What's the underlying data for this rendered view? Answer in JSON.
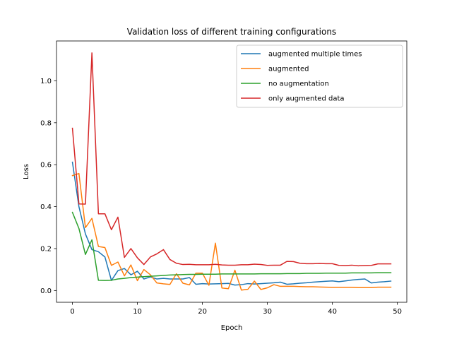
{
  "chart_data": {
    "type": "line",
    "title": "Validation loss of different training configurations",
    "xlabel": "Epoch",
    "ylabel": "Loss",
    "xlim": [
      -2.45,
      51.45
    ],
    "ylim": [
      -0.056,
      1.19
    ],
    "x_ticks": [
      0,
      10,
      20,
      30,
      40,
      50
    ],
    "y_ticks": [
      0.0,
      0.2,
      0.4,
      0.6,
      0.8,
      1.0
    ],
    "x_tick_labels": [
      "0",
      "10",
      "20",
      "30",
      "40",
      "50"
    ],
    "y_tick_labels": [
      "0.0",
      "0.2",
      "0.4",
      "0.6",
      "0.8",
      "1.0"
    ],
    "grid": false,
    "legend_position": "upper right",
    "x": [
      0,
      1,
      2,
      3,
      4,
      5,
      6,
      7,
      8,
      9,
      10,
      11,
      12,
      13,
      14,
      15,
      16,
      17,
      18,
      19,
      20,
      21,
      22,
      23,
      24,
      25,
      26,
      27,
      28,
      29,
      30,
      31,
      32,
      33,
      34,
      35,
      36,
      37,
      38,
      39,
      40,
      41,
      42,
      43,
      44,
      45,
      46,
      47,
      48,
      49
    ],
    "series": [
      {
        "name": "augmented multiple times",
        "color": "#1f77b4",
        "values": [
          0.612,
          0.4,
          0.27,
          0.195,
          0.185,
          0.16,
          0.048,
          0.095,
          0.105,
          0.075,
          0.092,
          0.055,
          0.065,
          0.055,
          0.058,
          0.055,
          0.055,
          0.055,
          0.062,
          0.03,
          0.033,
          0.031,
          0.032,
          0.033,
          0.034,
          0.026,
          0.028,
          0.033,
          0.031,
          0.033,
          0.035,
          0.037,
          0.04,
          0.03,
          0.032,
          0.035,
          0.037,
          0.04,
          0.042,
          0.044,
          0.046,
          0.042,
          0.046,
          0.05,
          0.053,
          0.055,
          0.036,
          0.04,
          0.042,
          0.045
        ]
      },
      {
        "name": "augmented",
        "color": "#ff7f0e",
        "values": [
          0.548,
          0.558,
          0.3,
          0.344,
          0.21,
          0.205,
          0.12,
          0.136,
          0.07,
          0.122,
          0.047,
          0.1,
          0.075,
          0.036,
          0.032,
          0.029,
          0.08,
          0.035,
          0.027,
          0.083,
          0.083,
          0.025,
          0.226,
          0.012,
          0.009,
          0.097,
          0.002,
          0.006,
          0.045,
          0.005,
          0.013,
          0.028,
          0.02,
          0.02,
          0.02,
          0.019,
          0.018,
          0.018,
          0.017,
          0.016,
          0.015,
          0.015,
          0.015,
          0.015,
          0.014,
          0.014,
          0.014,
          0.016,
          0.016,
          0.016
        ]
      },
      {
        "name": "no augmentation",
        "color": "#2ca02c",
        "values": [
          0.373,
          0.296,
          0.172,
          0.242,
          0.049,
          0.048,
          0.049,
          0.055,
          0.058,
          0.062,
          0.064,
          0.066,
          0.068,
          0.07,
          0.072,
          0.074,
          0.075,
          0.076,
          0.077,
          0.077,
          0.078,
          0.078,
          0.078,
          0.079,
          0.079,
          0.079,
          0.079,
          0.079,
          0.079,
          0.08,
          0.08,
          0.08,
          0.08,
          0.081,
          0.081,
          0.081,
          0.082,
          0.082,
          0.082,
          0.083,
          0.083,
          0.083,
          0.083,
          0.084,
          0.084,
          0.084,
          0.084,
          0.085,
          0.085,
          0.085
        ]
      },
      {
        "name": "only augmented data",
        "color": "#d62728",
        "values": [
          0.774,
          0.413,
          0.412,
          1.133,
          0.366,
          0.366,
          0.29,
          0.35,
          0.158,
          0.2,
          0.156,
          0.124,
          0.16,
          0.175,
          0.195,
          0.148,
          0.13,
          0.124,
          0.125,
          0.123,
          0.123,
          0.123,
          0.125,
          0.122,
          0.121,
          0.121,
          0.123,
          0.123,
          0.126,
          0.124,
          0.12,
          0.121,
          0.121,
          0.139,
          0.138,
          0.13,
          0.128,
          0.128,
          0.129,
          0.128,
          0.128,
          0.12,
          0.119,
          0.121,
          0.118,
          0.119,
          0.12,
          0.127,
          0.127,
          0.127
        ]
      }
    ]
  }
}
